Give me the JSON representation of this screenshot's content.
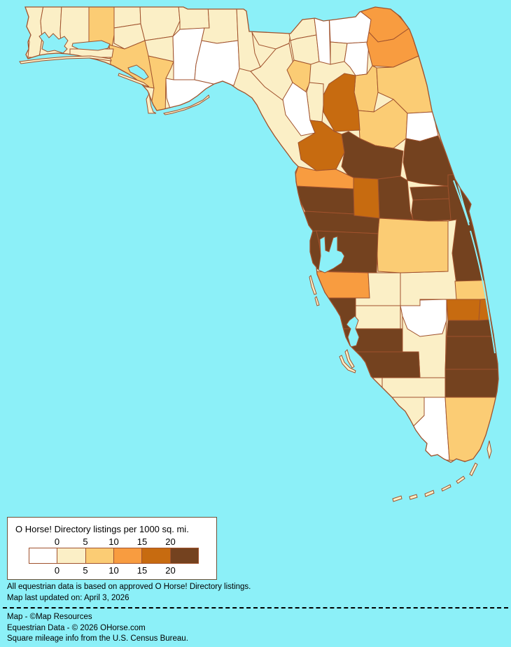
{
  "colors": {
    "water": "#8CF0F8",
    "land_base": "#FBEFC6",
    "border": "#A0522D",
    "legend_border": "#6E5138"
  },
  "legend": {
    "title": "O Horse! Directory listings per 1000 sq. mi.",
    "ticks_top": [
      "0",
      "5",
      "10",
      "15",
      "20"
    ],
    "ticks_bottom": [
      "0",
      "5",
      "10",
      "15",
      "20"
    ],
    "swatch_colors": [
      "#FFFFFF",
      "#FBEFC6",
      "#FBCC74",
      "#F89C40",
      "#C76B10",
      "#74421F"
    ]
  },
  "map": {
    "counties": [
      {
        "id": "escambia",
        "bucket": 1
      },
      {
        "id": "santa-rosa",
        "bucket": 1
      },
      {
        "id": "okaloosa",
        "bucket": 1
      },
      {
        "id": "walton",
        "bucket": 2
      },
      {
        "id": "holmes",
        "bucket": 1
      },
      {
        "id": "washington",
        "bucket": 1
      },
      {
        "id": "bay",
        "bucket": 2
      },
      {
        "id": "jackson",
        "bucket": 1
      },
      {
        "id": "calhoun",
        "bucket": 1
      },
      {
        "id": "gulf",
        "bucket": 2
      },
      {
        "id": "gadsden",
        "bucket": 1
      },
      {
        "id": "liberty",
        "bucket": 0
      },
      {
        "id": "franklin",
        "bucket": 0
      },
      {
        "id": "leon",
        "bucket": 1
      },
      {
        "id": "wakulla",
        "bucket": 0
      },
      {
        "id": "jefferson",
        "bucket": 1
      },
      {
        "id": "madison",
        "bucket": 1
      },
      {
        "id": "taylor",
        "bucket": 1
      },
      {
        "id": "hamilton",
        "bucket": 1
      },
      {
        "id": "suwannee",
        "bucket": 1
      },
      {
        "id": "lafayette",
        "bucket": 2
      },
      {
        "id": "columbia",
        "bucket": 0
      },
      {
        "id": "baker",
        "bucket": 0
      },
      {
        "id": "union",
        "bucket": 1
      },
      {
        "id": "bradford",
        "bucket": 0
      },
      {
        "id": "nassau",
        "bucket": 3
      },
      {
        "id": "duval",
        "bucket": 3
      },
      {
        "id": "clay",
        "bucket": 2
      },
      {
        "id": "st-johns",
        "bucket": 2
      },
      {
        "id": "putnam",
        "bucket": 2
      },
      {
        "id": "flagler",
        "bucket": 0
      },
      {
        "id": "alachua",
        "bucket": 4
      },
      {
        "id": "gilchrist",
        "bucket": 1
      },
      {
        "id": "dixie",
        "bucket": 0
      },
      {
        "id": "levy",
        "bucket": 4
      },
      {
        "id": "marion",
        "bucket": 5
      },
      {
        "id": "volusia",
        "bucket": 5
      },
      {
        "id": "lake",
        "bucket": 5
      },
      {
        "id": "seminole",
        "bucket": 5
      },
      {
        "id": "orange",
        "bucket": 5
      },
      {
        "id": "brevard",
        "bucket": 5
      },
      {
        "id": "osceola",
        "bucket": 1
      },
      {
        "id": "polk",
        "bucket": 2
      },
      {
        "id": "pasco",
        "bucket": 5
      },
      {
        "id": "hernando",
        "bucket": 5
      },
      {
        "id": "pinellas",
        "bucket": 5
      },
      {
        "id": "hillsborough",
        "bucket": 5
      },
      {
        "id": "sumter",
        "bucket": 4
      },
      {
        "id": "citrus",
        "bucket": 3
      },
      {
        "id": "manatee",
        "bucket": 3
      },
      {
        "id": "hardee",
        "bucket": 1
      },
      {
        "id": "sarasota",
        "bucket": 5
      },
      {
        "id": "desoto",
        "bucket": 1
      },
      {
        "id": "charlotte",
        "bucket": 5
      },
      {
        "id": "glades",
        "bucket": 1
      },
      {
        "id": "highlands",
        "bucket": 0
      },
      {
        "id": "lee",
        "bucket": 5
      },
      {
        "id": "hendry",
        "bucket": 1
      },
      {
        "id": "collier",
        "bucket": 1
      },
      {
        "id": "monroe",
        "bucket": 0
      },
      {
        "id": "miami-dade",
        "bucket": 2
      },
      {
        "id": "broward",
        "bucket": 5
      },
      {
        "id": "palm-beach",
        "bucket": 5
      },
      {
        "id": "martin",
        "bucket": 5
      },
      {
        "id": "st-lucie",
        "bucket": 4
      },
      {
        "id": "okeechobee",
        "bucket": 4
      },
      {
        "id": "indian-river",
        "bucket": 2
      }
    ]
  },
  "notes": [
    "All equestrian data is based on approved O Horse! Directory listings.",
    "Map last updated on: April 3, 2026"
  ],
  "credits": [
    "Map - ©Map Resources",
    "Equestrian Data - © 2026 OHorse.com",
    "Square mileage info from the U.S. Census Bureau."
  ]
}
